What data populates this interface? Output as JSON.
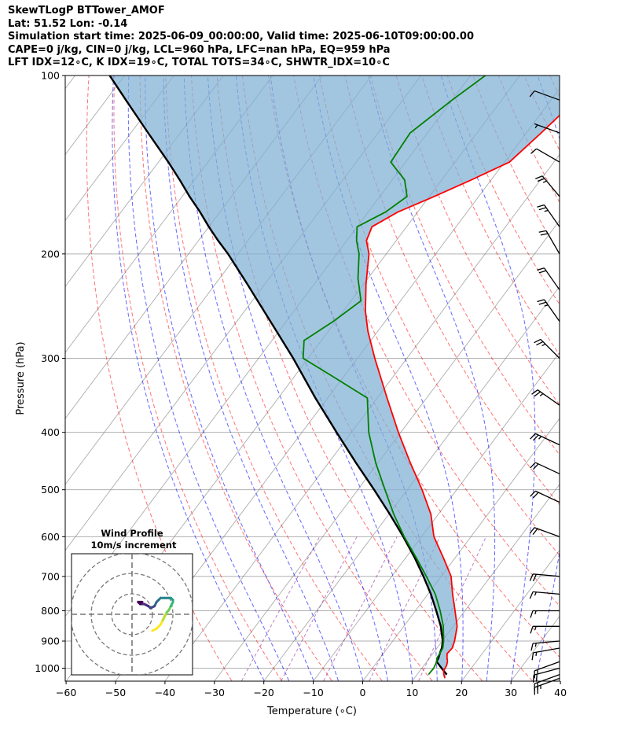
{
  "header": {
    "line1": "SkewTLogP BTTower_AMOF",
    "line2": "Lat: 51.52   Lon: -0.14",
    "line3": "Simulation start time: 2025-06-09_00:00:00, Valid time: 2025-06-10T09:00:00.00",
    "line4": "CAPE=0 j/kg, CIN=0 j/kg, LCL=960 hPa, LFC=nan hPa, EQ=959 hPa",
    "line5": "LFT IDX=12∘C, K IDX=19∘C, TOTAL TOTS=34∘C, SHWTR_IDX=10∘C"
  },
  "chart_data": {
    "type": "skew-t",
    "xlabel": "Temperature (∘C)",
    "ylabel": "Pressure (hPa)",
    "xlim": [
      -60,
      40
    ],
    "ylim": [
      1050,
      100
    ],
    "x_ticks": [
      -60,
      -50,
      -40,
      -30,
      -20,
      -10,
      0,
      10,
      20,
      30,
      40
    ],
    "x_tick_labels": [
      "−60",
      "−50",
      "−40",
      "−30",
      "−20",
      "−10",
      "0",
      "10",
      "20",
      "30",
      "40"
    ],
    "y_ticks": [
      1000,
      900,
      800,
      700,
      600,
      500,
      400,
      300,
      200,
      100
    ],
    "y_tick_labels": [
      "1000",
      "900",
      "800",
      "700",
      "600",
      "500",
      "400",
      "300",
      "200",
      "100"
    ],
    "colors": {
      "temperature": "#ff0000",
      "dewpoint": "#008000",
      "parcel": "#000000",
      "cape_fill": "#7fb0d4",
      "dry_adiabat": "#ff0000",
      "moist_adiabat": "#0000ff",
      "mixing_ratio": "#800080",
      "isotherm": "#808080"
    },
    "temperature": {
      "p": [
        1040,
        1025,
        1010,
        990,
        975,
        960,
        945,
        925,
        900,
        850,
        800,
        750,
        700,
        650,
        600,
        550,
        500,
        450,
        400,
        350,
        300,
        270,
        250,
        225,
        200,
        190,
        180,
        170,
        160,
        150,
        140,
        125,
        110,
        100
      ],
      "t": [
        16.2,
        15.4,
        14.8,
        14.6,
        14.2,
        13.5,
        12.9,
        13.1,
        12.5,
        10.8,
        8.0,
        5.0,
        2.0,
        -2.5,
        -7.5,
        -11.5,
        -17.0,
        -23.5,
        -30.5,
        -38.0,
        -46.5,
        -52.0,
        -55.5,
        -59.5,
        -63.5,
        -66.0,
        -67.0,
        -64.0,
        -59.0,
        -54.0,
        -49.0,
        -47.0,
        -45.0,
        -45.0
      ]
    },
    "dewpoint": {
      "p": [
        1025,
        1000,
        975,
        960,
        945,
        925,
        900,
        850,
        800,
        750,
        700,
        650,
        600,
        550,
        500,
        450,
        400,
        350,
        320,
        300,
        280,
        260,
        240,
        220,
        200,
        190,
        180,
        170,
        160,
        150,
        140,
        125,
        110,
        100
      ],
      "td": [
        12.3,
        12.4,
        12.0,
        11.5,
        11.4,
        11.2,
        10.3,
        8.0,
        5.0,
        1.5,
        -3.0,
        -8.0,
        -13.5,
        -19.0,
        -24.5,
        -30.5,
        -36.5,
        -42.0,
        -53.0,
        -61.0,
        -63.5,
        -60.5,
        -58.0,
        -62.0,
        -65.5,
        -68.0,
        -70.0,
        -66.5,
        -64.5,
        -67.5,
        -73.0,
        -73.5,
        -70.0,
        -67.0
      ]
    },
    "parcel": {
      "p": [
        1025,
        1000,
        975,
        960,
        940,
        925,
        900,
        850,
        800,
        750,
        700,
        650,
        600,
        550,
        500,
        450,
        400,
        350,
        300,
        270,
        250,
        225,
        200,
        190,
        180,
        170,
        160,
        150,
        140,
        125,
        110,
        100
      ],
      "t": [
        16.0,
        14.0,
        12.0,
        11.8,
        11.3,
        11.0,
        10.1,
        7.5,
        4.2,
        0.6,
        -3.6,
        -8.3,
        -13.7,
        -19.8,
        -26.7,
        -34.5,
        -43.0,
        -52.5,
        -63.0,
        -70.5,
        -76.0,
        -83.5,
        -92.0,
        -96.0,
        -100.0,
        -104.0,
        -108.5,
        -113.0,
        -118.0,
        -126.5,
        -136.0,
        -143.0
      ]
    },
    "wind_barbs": [
      {
        "p": 1040,
        "knots": 25,
        "dir_deg": 250
      },
      {
        "p": 1025,
        "knots": 20,
        "dir_deg": 250
      },
      {
        "p": 1000,
        "knots": 20,
        "dir_deg": 255
      },
      {
        "p": 975,
        "knots": 15,
        "dir_deg": 250
      },
      {
        "p": 925,
        "knots": 15,
        "dir_deg": 260
      },
      {
        "p": 900,
        "knots": 15,
        "dir_deg": 265
      },
      {
        "p": 850,
        "knots": 15,
        "dir_deg": 270
      },
      {
        "p": 800,
        "knots": 15,
        "dir_deg": 270
      },
      {
        "p": 750,
        "knots": 15,
        "dir_deg": 275
      },
      {
        "p": 700,
        "knots": 20,
        "dir_deg": 275
      },
      {
        "p": 600,
        "knots": 20,
        "dir_deg": 290
      },
      {
        "p": 525,
        "knots": 20,
        "dir_deg": 295
      },
      {
        "p": 470,
        "knots": 20,
        "dir_deg": 295
      },
      {
        "p": 420,
        "knots": 25,
        "dir_deg": 295
      },
      {
        "p": 360,
        "knots": 25,
        "dir_deg": 305
      },
      {
        "p": 300,
        "knots": 25,
        "dir_deg": 315
      },
      {
        "p": 260,
        "knots": 25,
        "dir_deg": 325
      },
      {
        "p": 230,
        "knots": 20,
        "dir_deg": 325
      },
      {
        "p": 200,
        "knots": 20,
        "dir_deg": 330
      },
      {
        "p": 180,
        "knots": 25,
        "dir_deg": 325
      },
      {
        "p": 160,
        "knots": 25,
        "dir_deg": 320
      },
      {
        "p": 140,
        "knots": 10,
        "dir_deg": 300
      },
      {
        "p": 125,
        "knots": 5,
        "dir_deg": 290
      },
      {
        "p": 110,
        "knots": 10,
        "dir_deg": 290
      }
    ],
    "hodograph": {
      "title_line1": "Wind Profile",
      "title_line2": "10m/s increment",
      "ring_radii_ms": [
        10,
        20,
        30
      ],
      "u": [
        10,
        12,
        14,
        15,
        16,
        17,
        18,
        19,
        20,
        20,
        19,
        18,
        16,
        14,
        13,
        12,
        11,
        9,
        8,
        6,
        4,
        3,
        5
      ],
      "v": [
        -8,
        -7,
        -5,
        -3,
        -1,
        1,
        2,
        4,
        6,
        7,
        8,
        8,
        8,
        8,
        7,
        6,
        4,
        3,
        4,
        5,
        5,
        6,
        6
      ]
    }
  }
}
